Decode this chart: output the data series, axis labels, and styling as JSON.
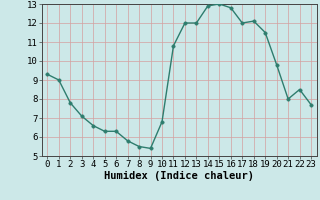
{
  "x": [
    0,
    1,
    2,
    3,
    4,
    5,
    6,
    7,
    8,
    9,
    10,
    11,
    12,
    13,
    14,
    15,
    16,
    17,
    18,
    19,
    20,
    21,
    22,
    23
  ],
  "y": [
    9.3,
    9.0,
    7.8,
    7.1,
    6.6,
    6.3,
    6.3,
    5.8,
    5.5,
    5.4,
    6.8,
    10.8,
    12.0,
    12.0,
    12.9,
    13.0,
    12.8,
    12.0,
    12.1,
    11.5,
    9.8,
    8.0,
    8.5,
    7.7
  ],
  "xlabel": "Humidex (Indice chaleur)",
  "ylim": [
    5,
    13
  ],
  "xlim_min": -0.5,
  "xlim_max": 23.5,
  "yticks": [
    5,
    6,
    7,
    8,
    9,
    10,
    11,
    12,
    13
  ],
  "xticks": [
    0,
    1,
    2,
    3,
    4,
    5,
    6,
    7,
    8,
    9,
    10,
    11,
    12,
    13,
    14,
    15,
    16,
    17,
    18,
    19,
    20,
    21,
    22,
    23
  ],
  "line_color": "#2e7d6e",
  "bg_color": "#cce8e8",
  "grid_color_x": "#d4a0a0",
  "grid_color_y": "#d4a0a0",
  "tick_label_fontsize": 6.5,
  "xlabel_fontsize": 7.5,
  "line_width": 1.0,
  "marker_size": 2.5
}
